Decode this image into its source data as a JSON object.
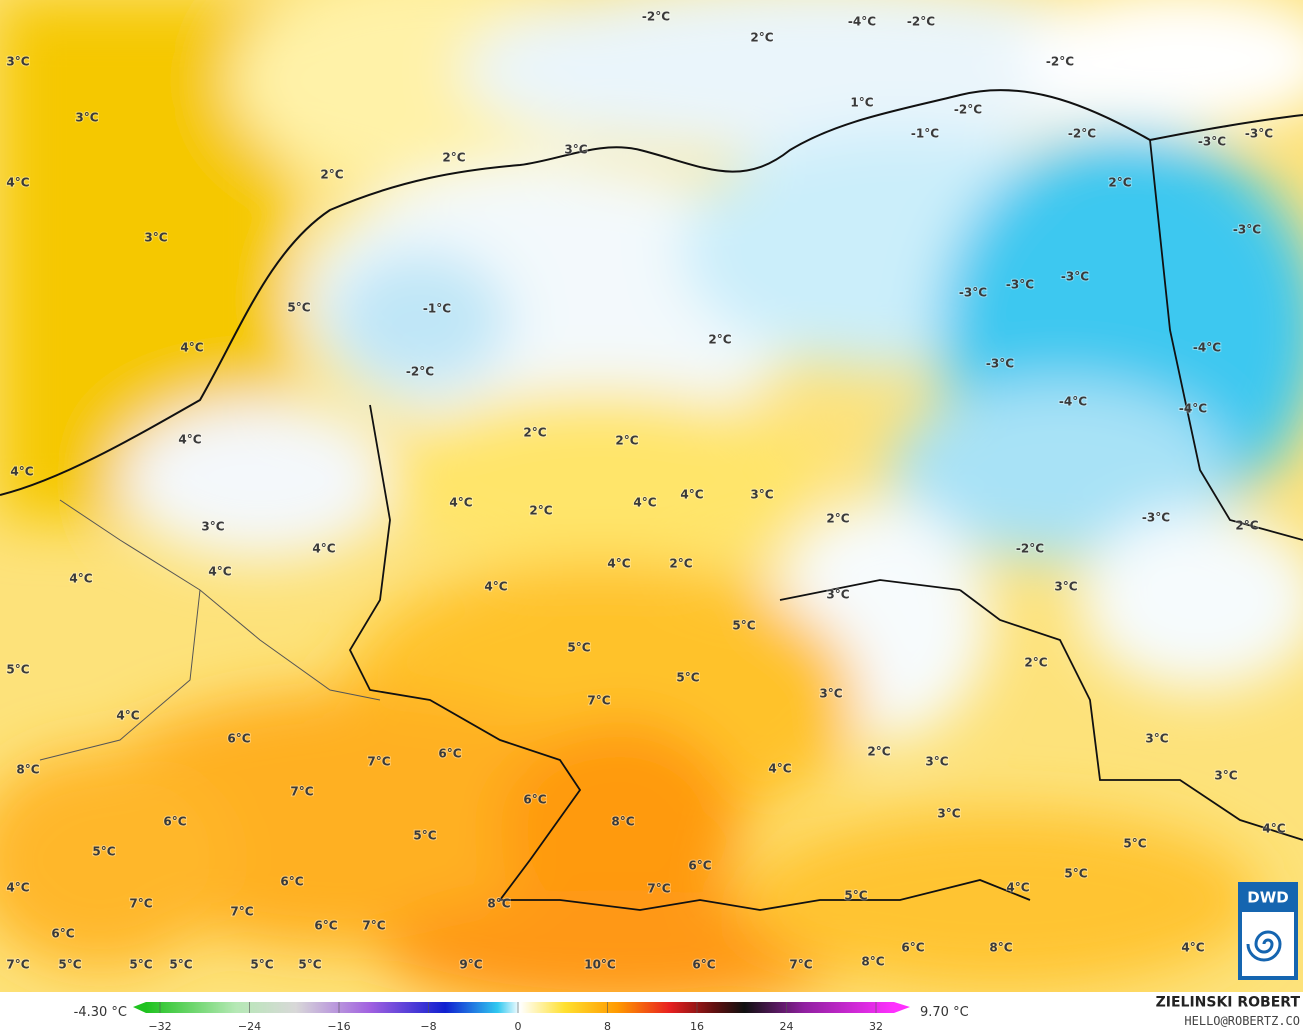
{
  "map": {
    "labels": [
      "3°C",
      "3°C",
      "4°C",
      "3°C",
      "2°C",
      "2°C",
      "3°C",
      "-2°C",
      "2°C",
      "-4°C",
      "-2°C",
      "-2°C",
      "1°C",
      "-2°C",
      "-1°C",
      "-2°C",
      "-3°C",
      "-3°C",
      "2°C",
      "-3°C",
      "5°C",
      "-1°C",
      "4°C",
      "-2°C",
      "2°C",
      "-3°C",
      "-3°C",
      "-3°C",
      "-3°C",
      "-4°C",
      "-4°C",
      "-4°C",
      "4°C",
      "4°C",
      "2°C",
      "2°C",
      "4°C",
      "2°C",
      "4°C",
      "4°C",
      "3°C",
      "2°C",
      "3°C",
      "4°C",
      "4°C",
      "4°C",
      "4°C",
      "4°C",
      "2°C",
      "-3°C",
      "2°C",
      "-2°C",
      "3°C",
      "3°C",
      "5°C",
      "5°C",
      "5°C",
      "5°C",
      "2°C",
      "7°C",
      "3°C",
      "4°C",
      "6°C",
      "3°C",
      "6°C",
      "7°C",
      "2°C",
      "3°C",
      "3°C",
      "8°C",
      "4°C",
      "7°C",
      "6°C",
      "3°C",
      "6°C",
      "8°C",
      "5°C",
      "4°C",
      "5°C",
      "5°C",
      "6°C",
      "6°C",
      "4°C",
      "7°C",
      "4°C",
      "5°C",
      "5°C",
      "7°C",
      "8°C",
      "7°C",
      "6°C",
      "7°C",
      "6°C",
      "6°C",
      "8°C",
      "4°C",
      "7°C",
      "5°C",
      "5°C",
      "5°C",
      "5°C",
      "5°C",
      "9°C",
      "10°C",
      "6°C",
      "7°C",
      "8°C"
    ]
  },
  "colorbar": {
    "min_label": "-4.30 °C",
    "max_label": "9.70 °C",
    "lim": [
      -32,
      32
    ],
    "ticks": [
      {
        "value": -32,
        "label": "−32"
      },
      {
        "value": -24,
        "label": "−24"
      },
      {
        "value": -16,
        "label": "−16"
      },
      {
        "value": -8,
        "label": "−8"
      },
      0,
      8,
      16,
      24,
      32
    ]
  },
  "credits": {
    "logo": "DWD",
    "author": "ZIELINSKI ROBERT",
    "contact": "HELLO@ROBERTZ.CO"
  }
}
